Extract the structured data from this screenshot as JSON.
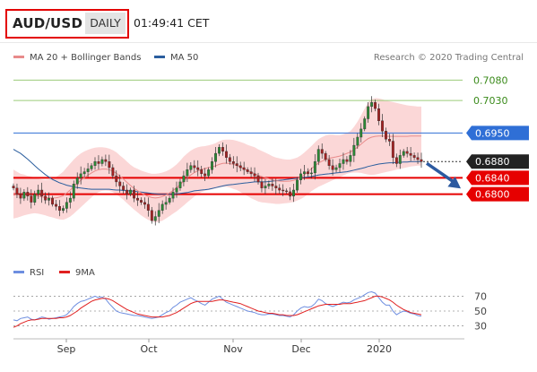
{
  "header": {
    "pair": "AUD/USD",
    "period": "DAILY",
    "time": "01:49:41 CET"
  },
  "legend": {
    "ma20": "MA 20 + Bollinger Bands",
    "ma50": "MA 50",
    "rsi": "RSI",
    "ma9": "9MA",
    "credit": "Research © 2020 Trading Central"
  },
  "colors": {
    "candle_up": "#2a8a35",
    "candle_down": "#a62020",
    "bollinger_fill": "#fbd7d7",
    "ma20": "#e88b8b",
    "ma50": "#2b5e9e",
    "resistance_green": "#9ccc7a",
    "support_red": "#e60000",
    "pivot_blue": "#2f6fd6",
    "arrow": "#2c5aa0",
    "rsi": "#6e8ee0",
    "rsi_ma": "#e02020"
  },
  "chart_data": [
    {
      "type": "candlestick",
      "x_ticks": [
        "Sep",
        "Oct",
        "Nov",
        "Dec",
        "2020"
      ],
      "ylim": [
        0.6645,
        0.7105
      ],
      "levels": [
        {
          "value": 0.708,
          "label": "0.7080",
          "kind": "resistance"
        },
        {
          "value": 0.703,
          "label": "0.7030",
          "kind": "resistance"
        },
        {
          "value": 0.695,
          "label": "0.6950",
          "kind": "pivot"
        },
        {
          "value": 0.688,
          "label": "0.6880",
          "kind": "current"
        },
        {
          "value": 0.684,
          "label": "0.6840",
          "kind": "support"
        },
        {
          "value": 0.68,
          "label": "0.6800",
          "kind": "support"
        }
      ],
      "close": [
        0.6815,
        0.68,
        0.679,
        0.6805,
        0.6795,
        0.678,
        0.68,
        0.681,
        0.6795,
        0.6785,
        0.679,
        0.6775,
        0.677,
        0.676,
        0.6765,
        0.678,
        0.679,
        0.6825,
        0.684,
        0.685,
        0.6855,
        0.6862,
        0.687,
        0.688,
        0.6875,
        0.6885,
        0.688,
        0.6865,
        0.6845,
        0.683,
        0.682,
        0.681,
        0.68,
        0.681,
        0.679,
        0.6785,
        0.678,
        0.6775,
        0.676,
        0.6735,
        0.6745,
        0.676,
        0.6775,
        0.678,
        0.679,
        0.6805,
        0.6815,
        0.683,
        0.6845,
        0.686,
        0.687,
        0.6865,
        0.686,
        0.685,
        0.6845,
        0.686,
        0.688,
        0.69,
        0.6915,
        0.6905,
        0.689,
        0.688,
        0.6875,
        0.687,
        0.6865,
        0.686,
        0.6855,
        0.685,
        0.6845,
        0.683,
        0.6815,
        0.682,
        0.6825,
        0.682,
        0.6815,
        0.681,
        0.6808,
        0.6806,
        0.6795,
        0.681,
        0.6835,
        0.685,
        0.6855,
        0.685,
        0.6852,
        0.688,
        0.691,
        0.69,
        0.6885,
        0.687,
        0.686,
        0.6865,
        0.6875,
        0.6885,
        0.688,
        0.6895,
        0.692,
        0.694,
        0.696,
        0.6985,
        0.7015,
        0.7025,
        0.701,
        0.698,
        0.6955,
        0.6935,
        0.693,
        0.689,
        0.6875,
        0.6895,
        0.6905,
        0.69,
        0.6895,
        0.689,
        0.6885,
        0.688
      ],
      "bb_upper": [
        0.686,
        0.6855,
        0.685,
        0.6848,
        0.6845,
        0.6843,
        0.684,
        0.6838,
        0.6836,
        0.6835,
        0.6836,
        0.6838,
        0.6842,
        0.6848,
        0.6855,
        0.6865,
        0.6875,
        0.6885,
        0.6893,
        0.69,
        0.6905,
        0.6909,
        0.6912,
        0.6914,
        0.6915,
        0.6915,
        0.6914,
        0.6912,
        0.6908,
        0.6903,
        0.6895,
        0.6888,
        0.688,
        0.6872,
        0.6866,
        0.6862,
        0.6858,
        0.6855,
        0.6852,
        0.685,
        0.685,
        0.6851,
        0.6853,
        0.6856,
        0.686,
        0.6866,
        0.6873,
        0.6882,
        0.6892,
        0.69,
        0.6907,
        0.6912,
        0.6915,
        0.6917,
        0.6918,
        0.692,
        0.6922,
        0.6925,
        0.693,
        0.6933,
        0.6934,
        0.6934,
        0.6933,
        0.6931,
        0.6928,
        0.6925,
        0.6921,
        0.6918,
        0.6915,
        0.691,
        0.6906,
        0.6902,
        0.6898,
        0.6893,
        0.689,
        0.6888,
        0.6886,
        0.6885,
        0.6885,
        0.6887,
        0.689,
        0.6895,
        0.6902,
        0.691,
        0.6918,
        0.6927,
        0.6935,
        0.694,
        0.6944,
        0.6946,
        0.6946,
        0.6945,
        0.6945,
        0.6947,
        0.695,
        0.6955,
        0.6965,
        0.6978,
        0.6993,
        0.701,
        0.7025,
        0.7033,
        0.7036,
        0.7035,
        0.7033,
        0.703,
        0.7028,
        0.7026,
        0.7024,
        0.7022,
        0.702,
        0.7018,
        0.7017,
        0.7016,
        0.7015,
        0.7015
      ],
      "bb_lower": [
        0.674,
        0.6742,
        0.6745,
        0.6748,
        0.675,
        0.6752,
        0.6753,
        0.6752,
        0.675,
        0.6748,
        0.6745,
        0.6743,
        0.674,
        0.6738,
        0.6737,
        0.674,
        0.6745,
        0.6752,
        0.676,
        0.6768,
        0.6776,
        0.6784,
        0.6792,
        0.68,
        0.6805,
        0.6808,
        0.6809,
        0.6808,
        0.6805,
        0.68,
        0.6793,
        0.6786,
        0.6778,
        0.677,
        0.6762,
        0.6755,
        0.6748,
        0.6742,
        0.6737,
        0.6733,
        0.6731,
        0.6732,
        0.6735,
        0.674,
        0.6746,
        0.6752,
        0.6758,
        0.6765,
        0.6772,
        0.678,
        0.6787,
        0.6794,
        0.68,
        0.6805,
        0.6808,
        0.681,
        0.6812,
        0.6814,
        0.6816,
        0.6818,
        0.6818,
        0.6816,
        0.6813,
        0.681,
        0.6805,
        0.68,
        0.6795,
        0.679,
        0.6786,
        0.6782,
        0.678,
        0.6779,
        0.6778,
        0.6777,
        0.6776,
        0.6776,
        0.6777,
        0.6778,
        0.6779,
        0.6781,
        0.6784,
        0.6788,
        0.6793,
        0.68,
        0.6807,
        0.6813,
        0.6818,
        0.6822,
        0.6826,
        0.683,
        0.6834,
        0.6838,
        0.6842,
        0.6846,
        0.685,
        0.6852,
        0.6853,
        0.6853,
        0.6852,
        0.685,
        0.6848,
        0.6847,
        0.6848,
        0.685,
        0.6852,
        0.6854,
        0.6856,
        0.6858,
        0.686,
        0.6862,
        0.6864,
        0.6866,
        0.6868,
        0.6869,
        0.687,
        0.687
      ],
      "ma50": [
        0.691,
        0.6905,
        0.69,
        0.6893,
        0.6886,
        0.6878,
        0.687,
        0.6862,
        0.6855,
        0.6848,
        0.6842,
        0.6836,
        0.6832,
        0.6828,
        0.6825,
        0.6822,
        0.682,
        0.6818,
        0.6816,
        0.6815,
        0.6814,
        0.6813,
        0.6812,
        0.6812,
        0.6812,
        0.6812,
        0.6812,
        0.6812,
        0.6811,
        0.681,
        0.681,
        0.6809,
        0.6808,
        0.6808,
        0.6807,
        0.6806,
        0.6805,
        0.6804,
        0.6803,
        0.6802,
        0.6801,
        0.68,
        0.68,
        0.68,
        0.68,
        0.68,
        0.6801,
        0.6802,
        0.6803,
        0.6804,
        0.6806,
        0.6808,
        0.6809,
        0.681,
        0.6811,
        0.6812,
        0.6814,
        0.6816,
        0.6818,
        0.682,
        0.6822,
        0.6823,
        0.6824,
        0.6825,
        0.6826,
        0.6827,
        0.6828,
        0.6829,
        0.683,
        0.683,
        0.683,
        0.683,
        0.6831,
        0.6832,
        0.6833,
        0.6834,
        0.6835,
        0.6836,
        0.6837,
        0.6838,
        0.6839,
        0.684,
        0.6841,
        0.6842,
        0.6843,
        0.6845,
        0.6847,
        0.6848,
        0.6849,
        0.685,
        0.6851,
        0.6852,
        0.6853,
        0.6854,
        0.6855,
        0.6857,
        0.6859,
        0.6861,
        0.6863,
        0.6865,
        0.6868,
        0.687,
        0.6872,
        0.6874,
        0.6875,
        0.6876,
        0.6877,
        0.6877,
        0.6878,
        0.6878,
        0.6879,
        0.6879,
        0.688,
        0.688,
        0.688,
        0.688
      ],
      "forecast_arrow": {
        "from": 0.688,
        "to": 0.6805
      }
    },
    {
      "type": "line",
      "x_ticks": [
        "Sep",
        "Oct",
        "Nov",
        "Dec",
        "2020"
      ],
      "y_ticks": [
        "70",
        "50",
        "30"
      ],
      "ylim": [
        15,
        85
      ],
      "series": [
        {
          "name": "RSI",
          "values": [
            38,
            37,
            40,
            41,
            42,
            39,
            38,
            40,
            42,
            41,
            39,
            40,
            41,
            42,
            43,
            45,
            50,
            56,
            60,
            63,
            64,
            66,
            68,
            70,
            68,
            69,
            66,
            60,
            55,
            50,
            48,
            47,
            46,
            45,
            44,
            44,
            43,
            42,
            41,
            40,
            41,
            42,
            45,
            48,
            50,
            55,
            58,
            62,
            64,
            66,
            68,
            65,
            63,
            60,
            58,
            62,
            66,
            68,
            70,
            66,
            62,
            60,
            58,
            56,
            54,
            52,
            50,
            49,
            48,
            46,
            45,
            45,
            46,
            46,
            45,
            44,
            44,
            43,
            42,
            45,
            50,
            54,
            56,
            55,
            56,
            60,
            66,
            64,
            60,
            58,
            56,
            58,
            60,
            62,
            61,
            62,
            65,
            67,
            69,
            72,
            75,
            76,
            74,
            68,
            62,
            58,
            58,
            50,
            45,
            48,
            50,
            49,
            47,
            46,
            44,
            43
          ]
        },
        {
          "name": "9MA",
          "values": [
            28,
            30,
            33,
            35,
            37,
            38,
            38,
            39,
            40,
            40,
            40,
            40,
            40,
            41,
            41,
            42,
            44,
            47,
            50,
            54,
            57,
            60,
            63,
            65,
            66,
            67,
            67,
            66,
            64,
            61,
            58,
            55,
            52,
            50,
            48,
            46,
            45,
            44,
            43,
            42,
            42,
            42,
            42,
            43,
            44,
            46,
            48,
            51,
            54,
            57,
            60,
            62,
            63,
            63,
            63,
            63,
            63,
            64,
            65,
            65,
            64,
            63,
            62,
            61,
            60,
            58,
            56,
            54,
            52,
            50,
            49,
            48,
            47,
            47,
            46,
            45,
            45,
            44,
            44,
            44,
            45,
            47,
            49,
            51,
            53,
            55,
            57,
            58,
            59,
            59,
            59,
            59,
            59,
            60,
            60,
            60,
            61,
            62,
            63,
            64,
            66,
            68,
            70,
            70,
            69,
            67,
            65,
            62,
            58,
            55,
            52,
            50,
            48,
            47,
            46,
            45
          ]
        }
      ]
    }
  ]
}
